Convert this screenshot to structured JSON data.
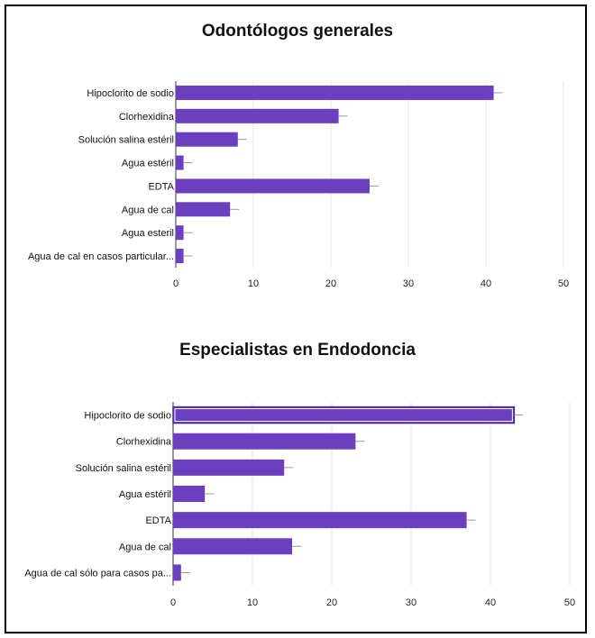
{
  "chart_data": [
    {
      "type": "bar",
      "orientation": "horizontal",
      "title": "Odontólogos generales",
      "categories": [
        "Hipoclorito de sodio",
        "Clorhexidina",
        "Solución salina estéril",
        "Agua estéril",
        "EDTA",
        "Agua de cal",
        "Agua esteril",
        "Agua de cal en casos particular..."
      ],
      "values": [
        41,
        21,
        8,
        1,
        25,
        7,
        1,
        1
      ],
      "xlim": [
        0,
        50
      ],
      "xticks": [
        0,
        10,
        20,
        30,
        40,
        50
      ],
      "grid": true,
      "bar_color": "#6b3fbf",
      "error_bars": true
    },
    {
      "type": "bar",
      "orientation": "horizontal",
      "title": "Especialistas en Endodoncia",
      "categories": [
        "Hipoclorito de sodio",
        "Clorhexidina",
        "Solución salina estéril",
        "Agua estéril",
        "EDTA",
        "Agua de cal",
        "Agua de cal sólo para casos pa..."
      ],
      "values": [
        43,
        23,
        14,
        4,
        37,
        15,
        1
      ],
      "xlim": [
        0,
        50
      ],
      "xticks": [
        0,
        10,
        20,
        30,
        40,
        50
      ],
      "grid": true,
      "bar_color": "#6b3fbf",
      "highlight": "Hipoclorito de sodio",
      "error_bars": true
    }
  ]
}
